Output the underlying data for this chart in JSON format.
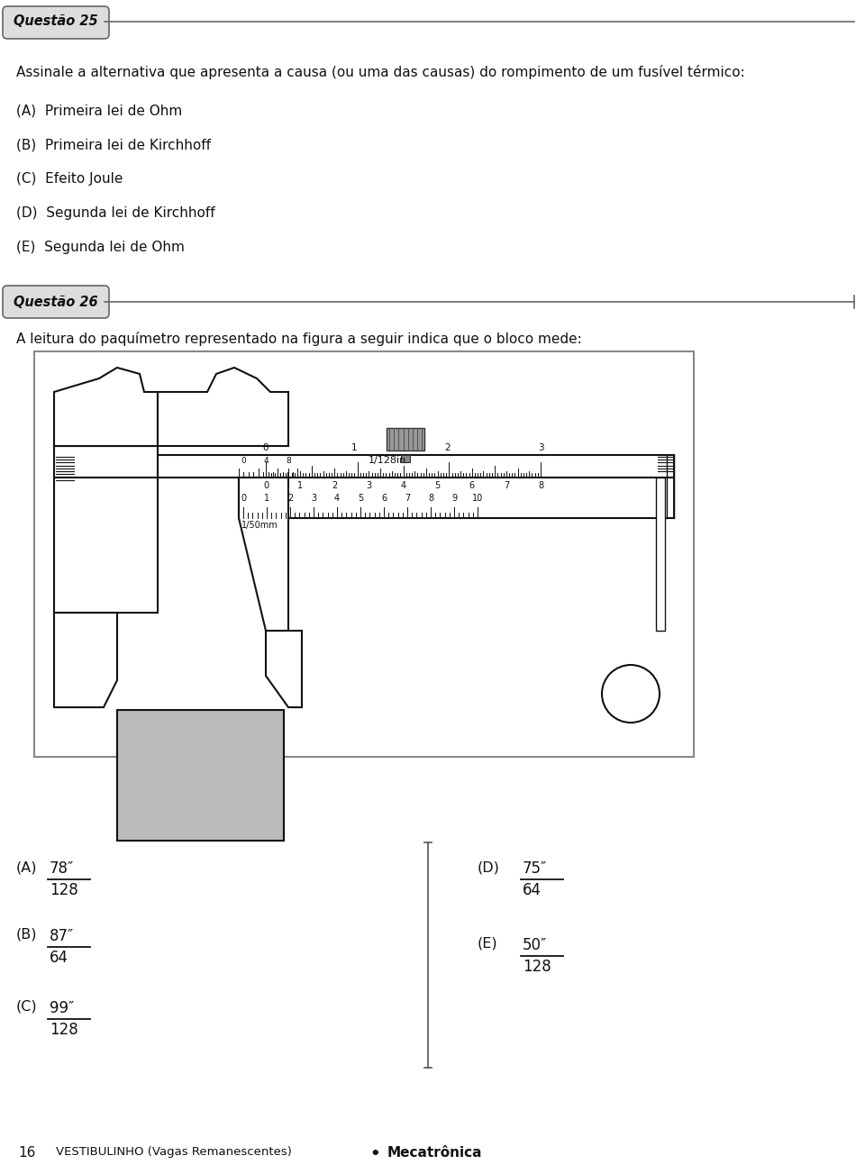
{
  "background_color": "#ffffff",
  "q25_label": "Questão 25",
  "q25_text": "Assinale a alternativa que apresenta a causa (ou uma das causas) do rompimento de um fusível térmico:",
  "q25_options": [
    "(A)  Primeira lei de Ohm",
    "(B)  Primeira lei de Kirchhoff",
    "(C)  Efeito Joule",
    "(D)  Segunda lei de Kirchhoff",
    "(E)  Segunda lei de Ohm"
  ],
  "q26_label": "Questão 26",
  "q26_text": "A leitura do paquímetro representado na figura a seguir indica que o bloco mede:",
  "answers_left": [
    {
      "letter": "(A)",
      "num": "78″",
      "den": "128"
    },
    {
      "letter": "(B)",
      "num": "87″",
      "den": "64"
    },
    {
      "letter": "(C)",
      "num": "99″",
      "den": "128"
    }
  ],
  "answers_right": [
    {
      "letter": "(D)",
      "num": "75″",
      "den": "64"
    },
    {
      "letter": "(E)",
      "num": "50″",
      "den": "128"
    }
  ],
  "footer_number": "16",
  "footer_text": "VESTIBULINHO (Vagas Remanescentes)",
  "footer_bold": "Mecatrônica"
}
